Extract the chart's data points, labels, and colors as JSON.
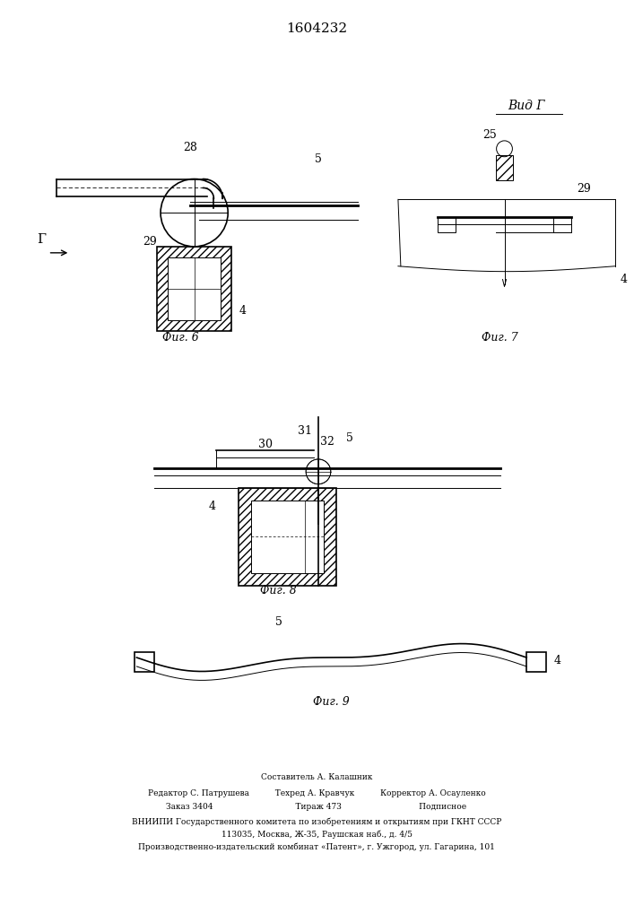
{
  "title": "1604232",
  "background_color": "#ffffff",
  "line_color": "#000000",
  "fig6_label": "Фиг. 6",
  "fig7_label": "Фиг. 7",
  "fig8_label": "Фиг. 8",
  "fig9_label": "Фиг. 9",
  "vid_g_label": "Вид Г"
}
